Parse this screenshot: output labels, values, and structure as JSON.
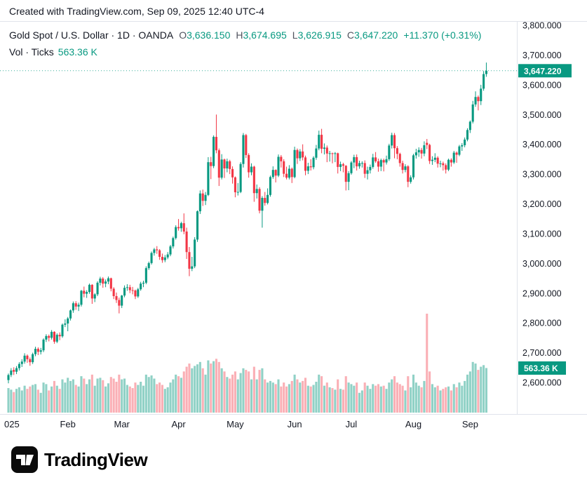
{
  "caption": "Created with TradingView.com, Sep 09, 2025 12:40 UTC-4",
  "header": {
    "title": "Gold Spot / U.S. Dollar · 1D · OANDA",
    "o_label": "O",
    "o_value": "3,636.150",
    "h_label": "H",
    "h_value": "3,674.695",
    "l_label": "L",
    "l_value": "3,626.915",
    "c_label": "C",
    "c_value": "3,647.220",
    "change": "+11.370 (+0.31%)",
    "volume_label": "Vol · Ticks",
    "volume_value": "563.36 K"
  },
  "badges": {
    "price": "3,647.220",
    "volume": "563.36 K"
  },
  "footer": {
    "brand": "TradingView"
  },
  "colors": {
    "up": "#089981",
    "down": "#F23645",
    "vol_up": "rgba(8,153,129,0.45)",
    "vol_down": "rgba(242,54,69,0.40)",
    "accent": "#089981",
    "axis_text": "#131722",
    "separator": "#e0e3eb",
    "badge_bg": "#089981"
  },
  "chart_data": {
    "type": "candlestick",
    "title": "Gold Spot / U.S. Dollar",
    "interval": "1D",
    "exchange": "OANDA",
    "legend_position": "top-left",
    "grid": false,
    "last_bar": {
      "open": 3636.15,
      "high": 3674.695,
      "low": 3626.915,
      "close": 3647.22,
      "change": 11.37,
      "change_pct": 0.31,
      "volume_k": 563.36
    },
    "y_axis": {
      "min": 2600,
      "max": 3800,
      "step": 100,
      "side": "right",
      "format": "thousands-comma-3-decimals"
    },
    "x_ticks": [
      {
        "label": "025",
        "i": 0
      },
      {
        "label": "Feb",
        "i": 22
      },
      {
        "label": "Mar",
        "i": 42
      },
      {
        "label": "Apr",
        "i": 63
      },
      {
        "label": "May",
        "i": 84
      },
      {
        "label": "Jun",
        "i": 106
      },
      {
        "label": "Jul",
        "i": 127
      },
      {
        "label": "Aug",
        "i": 150
      },
      {
        "label": "Sep",
        "i": 171
      }
    ],
    "volume_axis": {
      "max_k": 1250
    },
    "candles_format": [
      "open",
      "high",
      "low",
      "close",
      "volume_k"
    ],
    "candles": [
      [
        2608,
        2630,
        2597,
        2625,
        310
      ],
      [
        2625,
        2648,
        2618,
        2640,
        290
      ],
      [
        2642,
        2651,
        2625,
        2636,
        260
      ],
      [
        2636,
        2655,
        2628,
        2648,
        300
      ],
      [
        2648,
        2668,
        2640,
        2662,
        320
      ],
      [
        2662,
        2678,
        2652,
        2670,
        280
      ],
      [
        2670,
        2698,
        2663,
        2690,
        340
      ],
      [
        2690,
        2694,
        2666,
        2678,
        300
      ],
      [
        2678,
        2684,
        2656,
        2668,
        330
      ],
      [
        2668,
        2700,
        2662,
        2695,
        350
      ],
      [
        2695,
        2720,
        2688,
        2713,
        360
      ],
      [
        2713,
        2718,
        2692,
        2703,
        290
      ],
      [
        2703,
        2716,
        2694,
        2708,
        250
      ],
      [
        2708,
        2748,
        2702,
        2744,
        380
      ],
      [
        2744,
        2762,
        2736,
        2756,
        360
      ],
      [
        2756,
        2761,
        2738,
        2750,
        280
      ],
      [
        2750,
        2776,
        2744,
        2770,
        330
      ],
      [
        2770,
        2772,
        2730,
        2737,
        400
      ],
      [
        2737,
        2765,
        2732,
        2760,
        340
      ],
      [
        2760,
        2768,
        2742,
        2755,
        300
      ],
      [
        2755,
        2798,
        2750,
        2794,
        420
      ],
      [
        2794,
        2812,
        2786,
        2798,
        380
      ],
      [
        2798,
        2820,
        2772,
        2815,
        440
      ],
      [
        2815,
        2845,
        2808,
        2842,
        400
      ],
      [
        2842,
        2872,
        2834,
        2866,
        420
      ],
      [
        2866,
        2873,
        2844,
        2855,
        350
      ],
      [
        2855,
        2868,
        2840,
        2861,
        330
      ],
      [
        2861,
        2911,
        2855,
        2908,
        460
      ],
      [
        2908,
        2922,
        2886,
        2898,
        430
      ],
      [
        2898,
        2910,
        2884,
        2904,
        360
      ],
      [
        2904,
        2932,
        2898,
        2928,
        420
      ],
      [
        2928,
        2930,
        2864,
        2882,
        480
      ],
      [
        2882,
        2900,
        2870,
        2896,
        340
      ],
      [
        2896,
        2940,
        2890,
        2935,
        430
      ],
      [
        2935,
        2955,
        2926,
        2949,
        440
      ],
      [
        2949,
        2954,
        2918,
        2932,
        410
      ],
      [
        2932,
        2946,
        2920,
        2939,
        330
      ],
      [
        2939,
        2956,
        2930,
        2950,
        370
      ],
      [
        2950,
        2952,
        2906,
        2915,
        450
      ],
      [
        2915,
        2920,
        2880,
        2890,
        430
      ],
      [
        2890,
        2902,
        2867,
        2877,
        390
      ],
      [
        2877,
        2885,
        2832,
        2858,
        480
      ],
      [
        2858,
        2894,
        2850,
        2892,
        420
      ],
      [
        2892,
        2926,
        2886,
        2918,
        430
      ],
      [
        2918,
        2930,
        2908,
        2920,
        350
      ],
      [
        2920,
        2928,
        2900,
        2910,
        330
      ],
      [
        2910,
        2921,
        2896,
        2909,
        310
      ],
      [
        2909,
        2912,
        2880,
        2889,
        380
      ],
      [
        2889,
        2918,
        2884,
        2913,
        350
      ],
      [
        2913,
        2938,
        2908,
        2932,
        390
      ],
      [
        2932,
        2942,
        2920,
        2935,
        340
      ],
      [
        2935,
        2990,
        2930,
        2984,
        480
      ],
      [
        2984,
        3006,
        2978,
        3001,
        450
      ],
      [
        3001,
        3040,
        2996,
        3035,
        470
      ],
      [
        3035,
        3052,
        3026,
        3047,
        430
      ],
      [
        3047,
        3058,
        3032,
        3044,
        360
      ],
      [
        3044,
        3048,
        3012,
        3022,
        380
      ],
      [
        3022,
        3033,
        3002,
        3011,
        350
      ],
      [
        3011,
        3028,
        3004,
        3020,
        300
      ],
      [
        3020,
        3038,
        3014,
        3030,
        320
      ],
      [
        3030,
        3062,
        3024,
        3057,
        380
      ],
      [
        3057,
        3090,
        3050,
        3085,
        420
      ],
      [
        3085,
        3128,
        3080,
        3122,
        480
      ],
      [
        3122,
        3149,
        3110,
        3118,
        460
      ],
      [
        3118,
        3140,
        3106,
        3135,
        440
      ],
      [
        3135,
        3168,
        3098,
        3107,
        520
      ],
      [
        3107,
        3120,
        3015,
        3038,
        580
      ],
      [
        3038,
        3055,
        2957,
        2982,
        620
      ],
      [
        2982,
        3022,
        2974,
        2990,
        560
      ],
      [
        2990,
        3088,
        2984,
        3080,
        590
      ],
      [
        3080,
        3178,
        3072,
        3175,
        610
      ],
      [
        3175,
        3245,
        3166,
        3235,
        640
      ],
      [
        3235,
        3248,
        3193,
        3210,
        560
      ],
      [
        3210,
        3240,
        3196,
        3230,
        480
      ],
      [
        3230,
        3357,
        3226,
        3340,
        660
      ],
      [
        3340,
        3358,
        3283,
        3327,
        620
      ],
      [
        3327,
        3430,
        3320,
        3425,
        650
      ],
      [
        3425,
        3500,
        3370,
        3380,
        680
      ],
      [
        3380,
        3386,
        3260,
        3288,
        640
      ],
      [
        3288,
        3367,
        3282,
        3349,
        560
      ],
      [
        3349,
        3352,
        3287,
        3319,
        520
      ],
      [
        3319,
        3352,
        3306,
        3343,
        450
      ],
      [
        3343,
        3348,
        3300,
        3317,
        430
      ],
      [
        3317,
        3326,
        3268,
        3289,
        480
      ],
      [
        3289,
        3292,
        3222,
        3239,
        520
      ],
      [
        3239,
        3270,
        3228,
        3240,
        420
      ],
      [
        3240,
        3340,
        3236,
        3334,
        500
      ],
      [
        3334,
        3438,
        3322,
        3431,
        560
      ],
      [
        3431,
        3435,
        3354,
        3364,
        540
      ],
      [
        3364,
        3370,
        3288,
        3306,
        520
      ],
      [
        3306,
        3336,
        3296,
        3325,
        420
      ],
      [
        3325,
        3328,
        3207,
        3236,
        580
      ],
      [
        3236,
        3265,
        3218,
        3250,
        420
      ],
      [
        3250,
        3256,
        3168,
        3177,
        540
      ],
      [
        3177,
        3226,
        3120,
        3220,
        560
      ],
      [
        3220,
        3240,
        3194,
        3203,
        420
      ],
      [
        3203,
        3252,
        3198,
        3230,
        380
      ],
      [
        3230,
        3295,
        3224,
        3290,
        400
      ],
      [
        3290,
        3326,
        3284,
        3314,
        380
      ],
      [
        3314,
        3316,
        3272,
        3295,
        360
      ],
      [
        3295,
        3366,
        3290,
        3358,
        420
      ],
      [
        3358,
        3364,
        3322,
        3343,
        330
      ],
      [
        3343,
        3350,
        3290,
        3301,
        380
      ],
      [
        3301,
        3325,
        3282,
        3288,
        330
      ],
      [
        3288,
        3330,
        3282,
        3318,
        360
      ],
      [
        3318,
        3322,
        3270,
        3290,
        400
      ],
      [
        3290,
        3392,
        3286,
        3381,
        480
      ],
      [
        3381,
        3386,
        3334,
        3353,
        420
      ],
      [
        3353,
        3384,
        3344,
        3376,
        380
      ],
      [
        3376,
        3400,
        3346,
        3356,
        400
      ],
      [
        3356,
        3362,
        3296,
        3311,
        440
      ],
      [
        3311,
        3338,
        3300,
        3326,
        340
      ],
      [
        3326,
        3350,
        3312,
        3323,
        330
      ],
      [
        3323,
        3360,
        3316,
        3355,
        350
      ],
      [
        3355,
        3398,
        3348,
        3386,
        390
      ],
      [
        3386,
        3446,
        3380,
        3432,
        480
      ],
      [
        3432,
        3452,
        3370,
        3385,
        460
      ],
      [
        3385,
        3403,
        3366,
        3389,
        340
      ],
      [
        3389,
        3396,
        3340,
        3369,
        380
      ],
      [
        3369,
        3378,
        3342,
        3370,
        320
      ],
      [
        3370,
        3372,
        3336,
        3368,
        310
      ],
      [
        3368,
        3374,
        3340,
        3370,
        290
      ],
      [
        3370,
        3372,
        3302,
        3324,
        420
      ],
      [
        3324,
        3342,
        3310,
        3333,
        300
      ],
      [
        3333,
        3338,
        3306,
        3328,
        290
      ],
      [
        3328,
        3330,
        3245,
        3274,
        460
      ],
      [
        3274,
        3310,
        3246,
        3303,
        380
      ],
      [
        3303,
        3344,
        3298,
        3339,
        360
      ],
      [
        3339,
        3365,
        3320,
        3357,
        340
      ],
      [
        3357,
        3366,
        3312,
        3326,
        380
      ],
      [
        3326,
        3345,
        3318,
        3337,
        250
      ],
      [
        3337,
        3343,
        3322,
        3337,
        280
      ],
      [
        3337,
        3346,
        3287,
        3301,
        380
      ],
      [
        3301,
        3325,
        3282,
        3313,
        340
      ],
      [
        3313,
        3332,
        3302,
        3324,
        300
      ],
      [
        3324,
        3368,
        3318,
        3356,
        360
      ],
      [
        3356,
        3374,
        3338,
        3343,
        340
      ],
      [
        3343,
        3352,
        3308,
        3325,
        360
      ],
      [
        3325,
        3352,
        3310,
        3347,
        330
      ],
      [
        3347,
        3352,
        3309,
        3339,
        340
      ],
      [
        3339,
        3362,
        3332,
        3350,
        300
      ],
      [
        3350,
        3402,
        3344,
        3396,
        380
      ],
      [
        3396,
        3439,
        3386,
        3431,
        420
      ],
      [
        3431,
        3438,
        3353,
        3387,
        460
      ],
      [
        3387,
        3394,
        3350,
        3368,
        380
      ],
      [
        3368,
        3372,
        3325,
        3337,
        360
      ],
      [
        3337,
        3345,
        3302,
        3314,
        340
      ],
      [
        3314,
        3333,
        3306,
        3326,
        280
      ],
      [
        3326,
        3330,
        3256,
        3274,
        460
      ],
      [
        3274,
        3296,
        3268,
        3289,
        320
      ],
      [
        3289,
        3368,
        3282,
        3363,
        480
      ],
      [
        3363,
        3385,
        3352,
        3373,
        380
      ],
      [
        3373,
        3390,
        3358,
        3381,
        340
      ],
      [
        3381,
        3388,
        3352,
        3369,
        320
      ],
      [
        3369,
        3410,
        3360,
        3397,
        400
      ],
      [
        3405,
        3418,
        3384,
        3398,
        1250
      ],
      [
        3398,
        3402,
        3334,
        3344,
        520
      ],
      [
        3344,
        3360,
        3331,
        3348,
        360
      ],
      [
        3348,
        3370,
        3340,
        3355,
        320
      ],
      [
        3355,
        3360,
        3322,
        3335,
        340
      ],
      [
        3335,
        3345,
        3323,
        3336,
        280
      ],
      [
        3336,
        3342,
        3312,
        3330,
        300
      ],
      [
        3330,
        3336,
        3302,
        3315,
        320
      ],
      [
        3315,
        3352,
        3310,
        3348,
        330
      ],
      [
        3348,
        3353,
        3325,
        3339,
        280
      ],
      [
        3339,
        3378,
        3334,
        3372,
        360
      ],
      [
        3372,
        3376,
        3338,
        3365,
        320
      ],
      [
        3365,
        3398,
        3360,
        3393,
        380
      ],
      [
        3393,
        3404,
        3378,
        3397,
        340
      ],
      [
        3397,
        3423,
        3390,
        3416,
        400
      ],
      [
        3416,
        3454,
        3410,
        3448,
        480
      ],
      [
        3448,
        3480,
        3438,
        3476,
        520
      ],
      [
        3476,
        3546,
        3470,
        3534,
        640
      ],
      [
        3534,
        3578,
        3526,
        3559,
        620
      ],
      [
        3559,
        3564,
        3514,
        3545,
        540
      ],
      [
        3545,
        3600,
        3532,
        3587,
        580
      ],
      [
        3587,
        3646,
        3580,
        3636,
        600
      ],
      [
        3636.15,
        3674.695,
        3626.915,
        3647.22,
        563.36
      ]
    ]
  }
}
